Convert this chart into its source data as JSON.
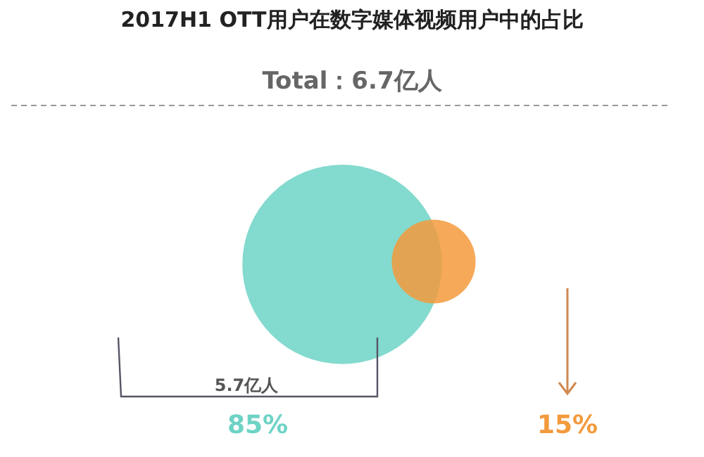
{
  "chart_data": {
    "type": "other",
    "title": "2017H1 OTT用户在数字媒体视频用户中的占比",
    "categories": [
      null,
      null
    ],
    "values": [
      85,
      15
    ],
    "colors": [
      "#6dd3c5",
      "#f39a3c"
    ],
    "value_labels": [
      "85%",
      "15%"
    ],
    "annotations": [
      "Total：6.7亿人",
      "5.7亿人"
    ]
  }
}
